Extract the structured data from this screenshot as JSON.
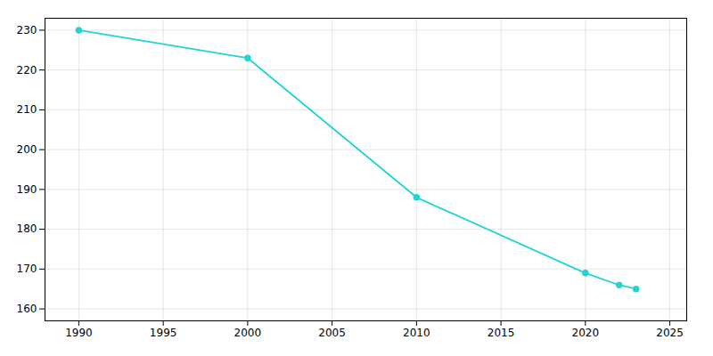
{
  "chart_data": {
    "type": "line",
    "x": [
      1990,
      2000,
      2010,
      2020,
      2022,
      2023
    ],
    "values": [
      230,
      223,
      188,
      169,
      166,
      165
    ],
    "color": "#22d3d3",
    "marker": "circle",
    "xlim": [
      1988,
      2026
    ],
    "ylim": [
      157,
      233
    ],
    "xticks": [
      1990,
      1995,
      2000,
      2005,
      2010,
      2015,
      2020,
      2025
    ],
    "yticks": [
      160,
      170,
      180,
      190,
      200,
      210,
      220,
      230
    ],
    "grid": true
  }
}
